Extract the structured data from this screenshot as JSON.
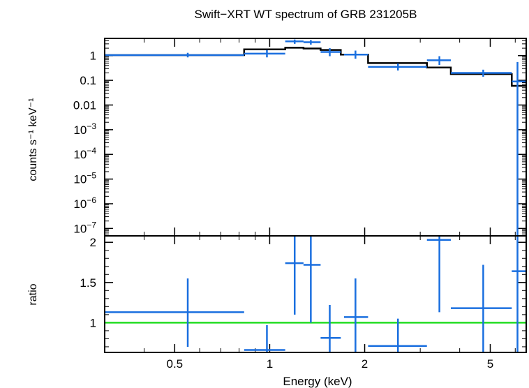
{
  "chart_data": [
    {
      "type": "scatter",
      "panel": "spectrum",
      "title": "Swift−XRT WT spectrum of GRB 231205B",
      "ylabel": "counts s⁻¹ keV⁻¹",
      "xlabel": "Energy (keV)",
      "x_scale": "log",
      "y_scale": "log",
      "xlim": [
        0.3,
        6.5
      ],
      "ylim": [
        5e-08,
        5
      ],
      "x_tick_labels": [
        "0.5",
        "1",
        "2",
        "5"
      ],
      "y_tick_labels": [
        "1",
        "0.1",
        "0.01",
        "10−3",
        "10−4",
        "10−5",
        "10−6",
        "10−7"
      ],
      "series": [
        {
          "role": "data",
          "color": "#1a6fdf",
          "points": [
            {
              "x": 0.55,
              "x_lo": 0.3,
              "x_hi": 0.83,
              "y": 1.05,
              "y_lo": 0.85,
              "y_hi": 1.3
            },
            {
              "x": 0.98,
              "x_lo": 0.83,
              "x_hi": 1.12,
              "y": 1.2,
              "y_lo": 0.85,
              "y_hi": 1.7
            },
            {
              "x": 1.2,
              "x_lo": 1.12,
              "x_hi": 1.28,
              "y": 3.8,
              "y_lo": 3.0,
              "y_hi": 4.5
            },
            {
              "x": 1.35,
              "x_lo": 1.28,
              "x_hi": 1.45,
              "y": 3.5,
              "y_lo": 2.8,
              "y_hi": 4.3
            },
            {
              "x": 1.55,
              "x_lo": 1.45,
              "x_hi": 1.68,
              "y": 1.4,
              "y_lo": 0.95,
              "y_hi": 2.0
            },
            {
              "x": 1.87,
              "x_lo": 1.72,
              "x_hi": 2.05,
              "y": 1.1,
              "y_lo": 0.75,
              "y_hi": 1.6
            },
            {
              "x": 2.55,
              "x_lo": 2.05,
              "x_hi": 3.15,
              "y": 0.35,
              "y_lo": 0.25,
              "y_hi": 0.48
            },
            {
              "x": 3.45,
              "x_lo": 3.15,
              "x_hi": 3.75,
              "y": 0.65,
              "y_lo": 0.42,
              "y_hi": 0.95
            },
            {
              "x": 4.75,
              "x_lo": 3.75,
              "x_hi": 5.85,
              "y": 0.2,
              "y_lo": 0.14,
              "y_hi": 0.27
            },
            {
              "x": 6.1,
              "x_lo": 5.85,
              "x_hi": 6.5,
              "y": 0.09,
              "y_lo": 5e-08,
              "y_hi": 0.55
            }
          ]
        },
        {
          "role": "model",
          "color": "#000000",
          "steps": [
            {
              "x_lo": 0.3,
              "x_hi": 0.83,
              "y": 1.05
            },
            {
              "x_lo": 0.83,
              "x_hi": 1.12,
              "y": 1.8
            },
            {
              "x_lo": 1.12,
              "x_hi": 1.28,
              "y": 2.1
            },
            {
              "x_lo": 1.28,
              "x_hi": 1.45,
              "y": 1.95
            },
            {
              "x_lo": 1.45,
              "x_hi": 1.68,
              "y": 1.7
            },
            {
              "x_lo": 1.68,
              "x_hi": 2.05,
              "y": 1.1
            },
            {
              "x_lo": 2.05,
              "x_hi": 3.15,
              "y": 0.5
            },
            {
              "x_lo": 3.15,
              "x_hi": 3.75,
              "y": 0.33
            },
            {
              "x_lo": 3.75,
              "x_hi": 5.85,
              "y": 0.18
            },
            {
              "x_lo": 5.85,
              "x_hi": 6.5,
              "y": 0.06
            }
          ]
        }
      ]
    },
    {
      "type": "scatter",
      "panel": "ratio",
      "ylabel": "ratio",
      "xlabel": "Energy (keV)",
      "x_scale": "log",
      "xlim": [
        0.3,
        6.5
      ],
      "ylim": [
        0.63,
        2.08
      ],
      "y_tick_labels": [
        "1",
        "1.5",
        "2"
      ],
      "reference_line": {
        "y": 1,
        "color": "#22dd22"
      },
      "series": [
        {
          "role": "data",
          "color": "#1a6fdf",
          "points": [
            {
              "x": 0.55,
              "x_lo": 0.3,
              "x_hi": 0.83,
              "y": 1.13,
              "y_lo": 0.7,
              "y_hi": 1.55
            },
            {
              "x": 0.98,
              "x_lo": 0.83,
              "x_hi": 1.12,
              "y": 0.66,
              "y_lo": 0.63,
              "y_hi": 0.97
            },
            {
              "x": 1.2,
              "x_lo": 1.12,
              "x_hi": 1.28,
              "y": 1.74,
              "y_lo": 1.1,
              "y_hi": 2.08
            },
            {
              "x": 1.35,
              "x_lo": 1.28,
              "x_hi": 1.45,
              "y": 1.72,
              "y_lo": 1.0,
              "y_hi": 2.08
            },
            {
              "x": 1.55,
              "x_lo": 1.45,
              "x_hi": 1.68,
              "y": 0.81,
              "y_lo": 0.63,
              "y_hi": 1.22
            },
            {
              "x": 1.87,
              "x_lo": 1.72,
              "x_hi": 2.05,
              "y": 1.07,
              "y_lo": 0.63,
              "y_hi": 1.55
            },
            {
              "x": 2.55,
              "x_lo": 2.05,
              "x_hi": 3.15,
              "y": 0.71,
              "y_lo": 0.63,
              "y_hi": 1.05
            },
            {
              "x": 3.45,
              "x_lo": 3.15,
              "x_hi": 3.75,
              "y": 2.03,
              "y_lo": 1.13,
              "y_hi": 2.08
            },
            {
              "x": 4.75,
              "x_lo": 3.75,
              "x_hi": 5.85,
              "y": 1.18,
              "y_lo": 0.63,
              "y_hi": 1.72
            },
            {
              "x": 6.1,
              "x_lo": 5.85,
              "x_hi": 6.5,
              "y": 1.64,
              "y_lo": 0.63,
              "y_hi": 2.08
            }
          ]
        }
      ]
    }
  ]
}
